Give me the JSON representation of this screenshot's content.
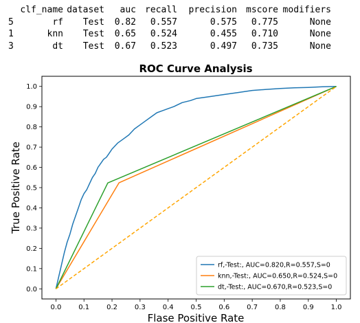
{
  "table": {
    "columns": [
      "clf_name",
      "dataset",
      "auc",
      "recall",
      "precision",
      "mscore",
      "modifiers"
    ],
    "rows": [
      {
        "index": "5",
        "cells": [
          "rf",
          "Test",
          "0.82",
          "0.557",
          "0.575",
          "0.775",
          "None"
        ]
      },
      {
        "index": "1",
        "cells": [
          "knn",
          "Test",
          "0.65",
          "0.524",
          "0.455",
          "0.710",
          "None"
        ]
      },
      {
        "index": "3",
        "cells": [
          "dt",
          "Test",
          "0.67",
          "0.523",
          "0.497",
          "0.735",
          "None"
        ]
      }
    ]
  },
  "chart_data": {
    "type": "line",
    "title": "ROC Curve Analysis",
    "xlabel": "Flase Positive Rate",
    "ylabel": "True Positive Rate",
    "xlim": [
      -0.05,
      1.05
    ],
    "ylim": [
      -0.05,
      1.05
    ],
    "xticks": [
      "0.0",
      "0.1",
      "0.2",
      "0.3",
      "0.4",
      "0.5",
      "0.6",
      "0.7",
      "0.8",
      "0.9",
      "1.0"
    ],
    "yticks": [
      "0.0",
      "0.1",
      "0.2",
      "0.3",
      "0.4",
      "0.5",
      "0.6",
      "0.7",
      "0.8",
      "0.9",
      "1.0"
    ],
    "grid": false,
    "legend_position": "lower-right",
    "series": [
      {
        "name": "rf,-Test:, AUC=0.820,R=0.557,S=0",
        "color": "#1f77b4",
        "x": [
          0.0,
          0.01,
          0.02,
          0.03,
          0.04,
          0.05,
          0.06,
          0.07,
          0.08,
          0.09,
          0.1,
          0.11,
          0.12,
          0.13,
          0.14,
          0.15,
          0.16,
          0.17,
          0.18,
          0.19,
          0.2,
          0.22,
          0.24,
          0.26,
          0.28,
          0.3,
          0.32,
          0.34,
          0.36,
          0.38,
          0.4,
          0.42,
          0.45,
          0.48,
          0.5,
          0.55,
          0.6,
          0.65,
          0.7,
          0.75,
          0.8,
          0.85,
          0.9,
          0.95,
          1.0
        ],
        "y": [
          0.0,
          0.06,
          0.12,
          0.18,
          0.23,
          0.27,
          0.32,
          0.36,
          0.4,
          0.44,
          0.47,
          0.49,
          0.52,
          0.55,
          0.57,
          0.6,
          0.62,
          0.64,
          0.65,
          0.67,
          0.69,
          0.72,
          0.74,
          0.76,
          0.79,
          0.81,
          0.83,
          0.85,
          0.87,
          0.88,
          0.89,
          0.9,
          0.92,
          0.93,
          0.94,
          0.95,
          0.96,
          0.97,
          0.98,
          0.985,
          0.99,
          0.993,
          0.995,
          0.998,
          1.0
        ]
      },
      {
        "name": "knn,-Test:, AUC=0.650,R=0.524,S=0",
        "color": "#ff7f0e",
        "x": [
          0.0,
          0.225,
          1.0
        ],
        "y": [
          0.0,
          0.524,
          1.0
        ]
      },
      {
        "name": "dt,-Test:, AUC=0.670,R=0.523,S=0",
        "color": "#2ca02c",
        "x": [
          0.0,
          0.185,
          1.0
        ],
        "y": [
          0.0,
          0.523,
          1.0
        ]
      },
      {
        "name": "",
        "color": "#ffa500",
        "dashed": true,
        "x": [
          0.0,
          1.0
        ],
        "y": [
          0.0,
          1.0
        ]
      }
    ]
  }
}
